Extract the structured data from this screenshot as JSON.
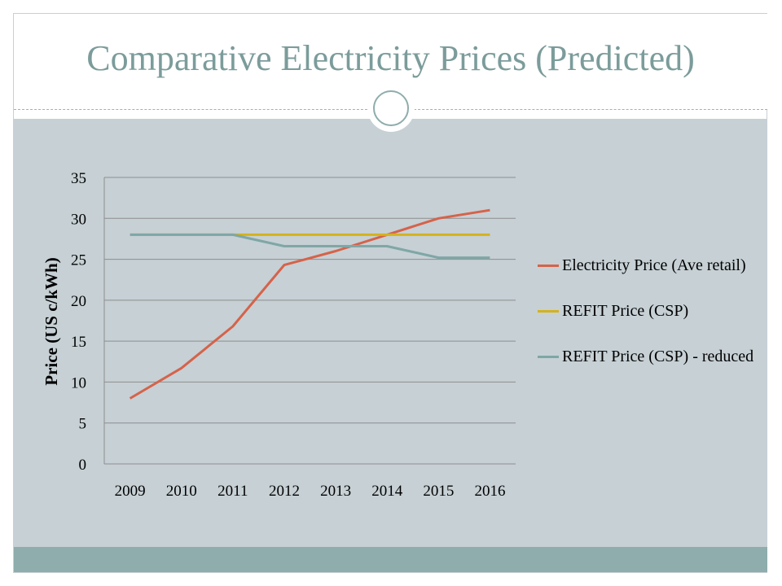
{
  "slide": {
    "title": "Comparative Electricity Prices (Predicted)"
  },
  "colors": {
    "title": "#7b9c9b",
    "content_bg": "#c6d0d5",
    "footer_bar": "#8eadac"
  },
  "chart_data": {
    "type": "line",
    "title": "",
    "xlabel": "",
    "ylabel": "Price (US c/kWh)",
    "x": [
      "2009",
      "2010",
      "2011",
      "2012",
      "2013",
      "2014",
      "2015",
      "2016"
    ],
    "ylim": [
      0,
      35
    ],
    "yticks": [
      0,
      5,
      10,
      15,
      20,
      25,
      30,
      35
    ],
    "grid": true,
    "legend_position": "right",
    "series": [
      {
        "name": "Electricity Price (Ave retail)",
        "color": "#d5634a",
        "values": [
          8,
          11.7,
          16.8,
          24.3,
          26,
          28,
          30,
          31
        ]
      },
      {
        "name": "REFIT Price (CSP)",
        "color": "#d4b21d",
        "values": [
          28,
          28,
          28,
          28,
          28,
          28,
          28,
          28
        ]
      },
      {
        "name": "REFIT Price (CSP) - reduced",
        "color": "#7fa7a6",
        "values": [
          28,
          28,
          28,
          26.6,
          26.6,
          26.6,
          25.2,
          25.2
        ]
      }
    ]
  }
}
